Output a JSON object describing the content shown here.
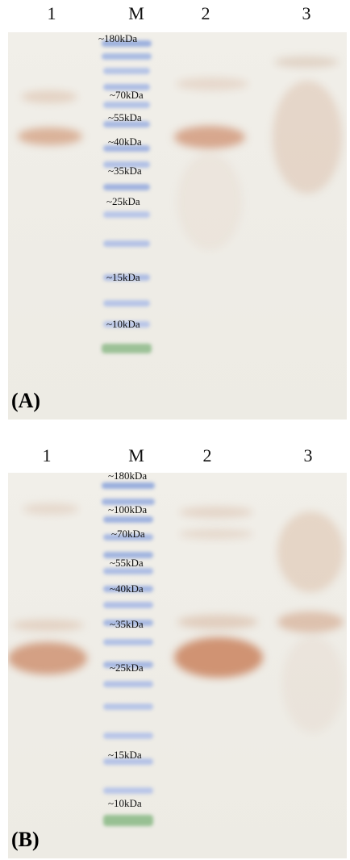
{
  "panels": [
    {
      "panel_label": "(A)",
      "lane_labels": [
        "1",
        "M",
        "2",
        "3"
      ],
      "mw_labels": [
        "~180kDa",
        "~70kDa",
        "~55kDa",
        "~40kDa",
        "~35kDa",
        "~25kDa",
        "~15kDa",
        "~10kDa"
      ]
    },
    {
      "panel_label": "(B)",
      "lane_labels": [
        "1",
        "M",
        "2",
        "3"
      ],
      "mw_labels": [
        "~180kDa",
        "~100kDa",
        "~70kDa",
        "~55kDa",
        "~40kDa",
        "~35kDa",
        "~25kDa",
        "~15kDa",
        "~10kDa"
      ]
    }
  ],
  "colors": {
    "membrane": "#efede7",
    "band": "#c9835a",
    "ladder_blue": "#8fa6d8",
    "ladder_green": "#8fbf8a"
  }
}
